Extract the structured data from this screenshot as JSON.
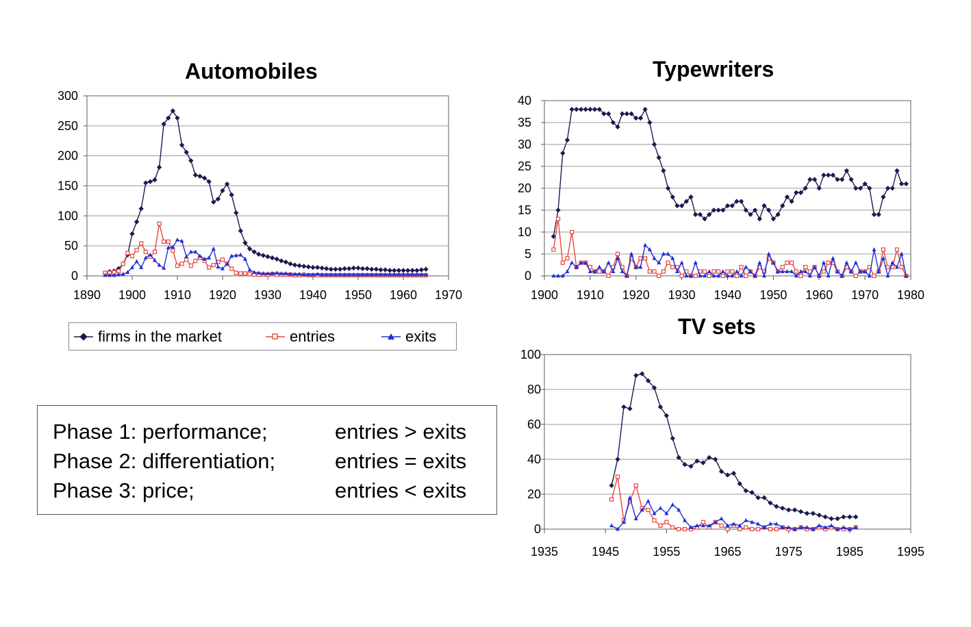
{
  "legend": {
    "firms_label": "firms in the market",
    "entries_label": "entries",
    "exits_label": "exits"
  },
  "phases": [
    {
      "name": "Phase 1: performance;",
      "rule": "entries > exits"
    },
    {
      "name": "Phase 2: differentiation;",
      "rule": "entries = exits"
    },
    {
      "name": "Phase 3: price;",
      "rule": "entries < exits"
    }
  ],
  "colors": {
    "firms": "#1a1a4e",
    "entries": "#e8463a",
    "exits": "#1f2fd6",
    "grid": "#9a9a9a"
  },
  "chart_data": [
    {
      "type": "line",
      "title": "Automobiles",
      "xlim": [
        1890,
        1970
      ],
      "ylim": [
        0,
        300
      ],
      "xticks": [
        1890,
        1900,
        1910,
        1920,
        1930,
        1940,
        1950,
        1960,
        1970
      ],
      "yticks": [
        0,
        50,
        100,
        150,
        200,
        250,
        300
      ],
      "grid": true,
      "legend_position": "bottom",
      "x_start": 1894,
      "series": [
        {
          "name": "firms in the market",
          "values": [
            4,
            7,
            8,
            12,
            20,
            35,
            70,
            90,
            112,
            155,
            157,
            160,
            181,
            253,
            263,
            275,
            263,
            218,
            206,
            192,
            168,
            166,
            163,
            157,
            123,
            128,
            142,
            153,
            135,
            105,
            75,
            55,
            45,
            40,
            36,
            34,
            32,
            30,
            28,
            25,
            23,
            20,
            18,
            17,
            16,
            15,
            14,
            14,
            13,
            12,
            11,
            11,
            11,
            12,
            12,
            13,
            13,
            12,
            12,
            11,
            11,
            10,
            10,
            9,
            9,
            9,
            9,
            9,
            9,
            9,
            10,
            11
          ]
        },
        {
          "name": "entries",
          "values": [
            5,
            5,
            6,
            8,
            20,
            38,
            33,
            43,
            54,
            40,
            32,
            40,
            87,
            57,
            57,
            42,
            17,
            20,
            27,
            17,
            25,
            30,
            25,
            14,
            18,
            23,
            27,
            20,
            12,
            5,
            4,
            4,
            3,
            2,
            2,
            2,
            2,
            3,
            2,
            2,
            2,
            2,
            1,
            1,
            2,
            1,
            1,
            1,
            1,
            1,
            1,
            1,
            1,
            1,
            1,
            1,
            1,
            1,
            1,
            1,
            1,
            1,
            1,
            1,
            1,
            1,
            1,
            1,
            1,
            1,
            1,
            1
          ]
        },
        {
          "name": "exits",
          "values": [
            1,
            1,
            1,
            2,
            3,
            6,
            14,
            24,
            14,
            30,
            35,
            26,
            18,
            13,
            47,
            48,
            60,
            58,
            32,
            40,
            40,
            33,
            28,
            30,
            45,
            15,
            12,
            20,
            33,
            34,
            35,
            28,
            10,
            6,
            5,
            4,
            4,
            4,
            5,
            4,
            4,
            3,
            3,
            3,
            2,
            2,
            2,
            3,
            2,
            2,
            2,
            2,
            2,
            2,
            2,
            2,
            2,
            2,
            2,
            2,
            2,
            2,
            2,
            2,
            2,
            2,
            2,
            2,
            2,
            2,
            2,
            2
          ]
        }
      ]
    },
    {
      "type": "line",
      "title": "Typewriters",
      "xlim": [
        1900,
        1980
      ],
      "ylim": [
        0,
        40
      ],
      "xticks": [
        1900,
        1910,
        1920,
        1930,
        1940,
        1950,
        1960,
        1970,
        1980
      ],
      "yticks": [
        0,
        5,
        10,
        15,
        20,
        25,
        30,
        35,
        40
      ],
      "grid": true,
      "x_start": 1902,
      "series": [
        {
          "name": "firms in the market",
          "values": [
            9,
            15,
            28,
            31,
            38,
            38,
            38,
            38,
            38,
            38,
            38,
            37,
            37,
            35,
            34,
            37,
            37,
            37,
            36,
            36,
            38,
            35,
            30,
            27,
            24,
            20,
            18,
            16,
            16,
            17,
            18,
            14,
            14,
            13,
            14,
            15,
            15,
            15,
            16,
            16,
            17,
            17,
            15,
            14,
            15,
            13,
            16,
            15,
            13,
            14,
            16,
            18,
            17,
            19,
            19,
            20,
            22,
            22,
            20,
            23,
            23,
            23,
            22,
            22,
            24,
            22,
            20,
            20,
            21,
            20,
            14,
            14,
            18,
            20,
            20,
            24,
            21,
            21
          ]
        },
        {
          "name": "entries",
          "values": [
            6,
            13,
            3,
            4,
            10,
            2,
            3,
            3,
            2,
            1,
            1,
            1,
            0,
            2,
            5,
            2,
            0,
            4,
            2,
            4,
            4,
            1,
            1,
            0,
            1,
            3,
            2,
            2,
            0,
            1,
            0,
            0,
            1,
            1,
            0,
            1,
            1,
            0,
            1,
            1,
            0,
            2,
            0,
            1,
            0,
            2,
            1,
            4,
            3,
            1,
            2,
            3,
            3,
            1,
            0,
            2,
            1,
            2,
            0,
            1,
            3,
            3,
            1,
            0,
            2,
            1,
            0,
            1,
            1,
            2,
            0,
            1,
            6,
            2,
            2,
            6,
            2,
            0
          ]
        },
        {
          "name": "exits",
          "values": [
            0,
            0,
            0,
            1,
            3,
            2,
            3,
            3,
            1,
            1,
            2,
            1,
            3,
            1,
            4,
            1,
            0,
            5,
            2,
            2,
            7,
            6,
            4,
            3,
            5,
            5,
            4,
            1,
            3,
            0,
            0,
            3,
            0,
            0,
            1,
            0,
            0,
            1,
            0,
            0,
            1,
            0,
            2,
            1,
            0,
            3,
            0,
            5,
            3,
            1,
            1,
            1,
            1,
            0,
            1,
            1,
            0,
            2,
            0,
            3,
            0,
            4,
            1,
            0,
            3,
            1,
            3,
            1,
            1,
            0,
            6,
            1,
            4,
            0,
            3,
            2,
            5,
            0
          ]
        }
      ]
    },
    {
      "type": "line",
      "title": "TV sets",
      "xlim": [
        1935,
        1995
      ],
      "ylim": [
        0,
        100
      ],
      "xticks": [
        1935,
        1945,
        1955,
        1965,
        1975,
        1985,
        1995
      ],
      "yticks": [
        0,
        20,
        40,
        60,
        80,
        100
      ],
      "grid": true,
      "x_start": 1946,
      "series": [
        {
          "name": "firms in the market",
          "values": [
            25,
            40,
            70,
            69,
            88,
            89,
            85,
            81,
            70,
            65,
            52,
            41,
            37,
            36,
            39,
            38,
            41,
            40,
            33,
            31,
            32,
            26,
            22,
            21,
            18,
            18,
            15,
            13,
            12,
            11,
            11,
            10,
            9,
            9,
            8,
            7,
            6,
            6,
            7,
            7,
            7
          ]
        },
        {
          "name": "entries",
          "values": [
            17,
            30,
            5,
            16,
            25,
            12,
            11,
            5,
            2,
            4,
            1,
            0,
            0,
            0,
            1,
            4,
            1,
            4,
            2,
            0,
            2,
            0,
            1,
            0,
            0,
            1,
            0,
            0,
            1,
            0,
            0,
            1,
            0,
            0,
            1,
            0,
            1,
            0,
            0,
            0,
            1
          ]
        },
        {
          "name": "exits",
          "values": [
            2,
            0,
            4,
            18,
            6,
            11,
            16,
            9,
            12,
            9,
            14,
            11,
            5,
            1,
            2,
            2,
            2,
            4,
            6,
            2,
            3,
            2,
            5,
            4,
            3,
            1,
            3,
            3,
            1,
            1,
            0,
            1,
            1,
            0,
            2,
            1,
            2,
            0,
            1,
            0,
            1
          ]
        }
      ]
    }
  ]
}
